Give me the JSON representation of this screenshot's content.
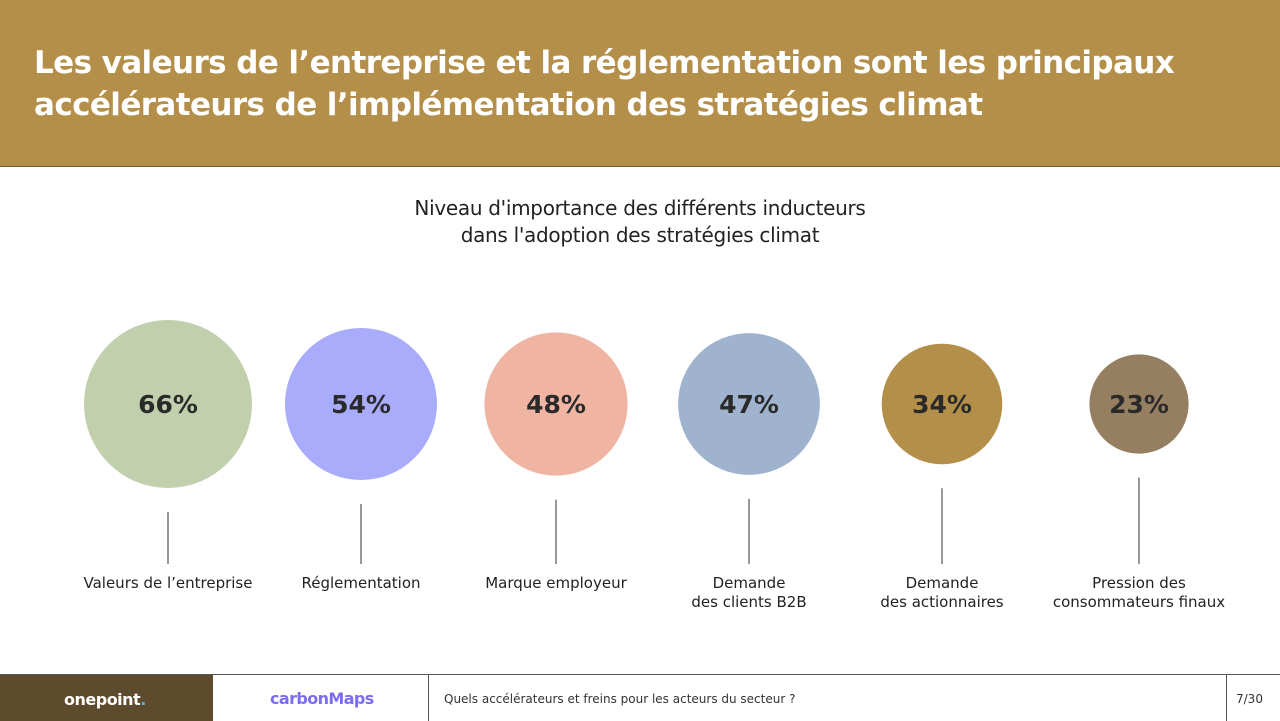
{
  "header": {
    "title": "Les valeurs de l’entreprise et la réglementation sont les principaux accélérateurs de l’implémentation des stratégies climat"
  },
  "chart_data": {
    "type": "bubble",
    "title_line1": "Niveau d'importance des différents inducteurs",
    "title_line2": "dans l'adoption des stratégies climat",
    "categories": [
      [
        "Valeurs de l’entreprise"
      ],
      [
        "Réglementation"
      ],
      [
        "Marque employeur"
      ],
      [
        "Demande",
        "des clients B2B"
      ],
      [
        "Demande",
        "des actionnaires"
      ],
      [
        "Pression des",
        "consommateurs finaux"
      ]
    ],
    "values": [
      66,
      54,
      48,
      47,
      34,
      23
    ],
    "value_labels": [
      "66%",
      "54%",
      "48%",
      "47%",
      "34%",
      "23%"
    ],
    "colors": [
      "#c1cfad",
      "#a9acfb",
      "#efb4a2",
      "#9fb3ce",
      "#b38f49",
      "#967f61"
    ]
  },
  "footer": {
    "brand": "onepoint",
    "brand_dot": ".",
    "partner": "carbonMaps",
    "question": "Quels accélérateurs et freins pour les acteurs du secteur ?",
    "page": "7/30"
  }
}
